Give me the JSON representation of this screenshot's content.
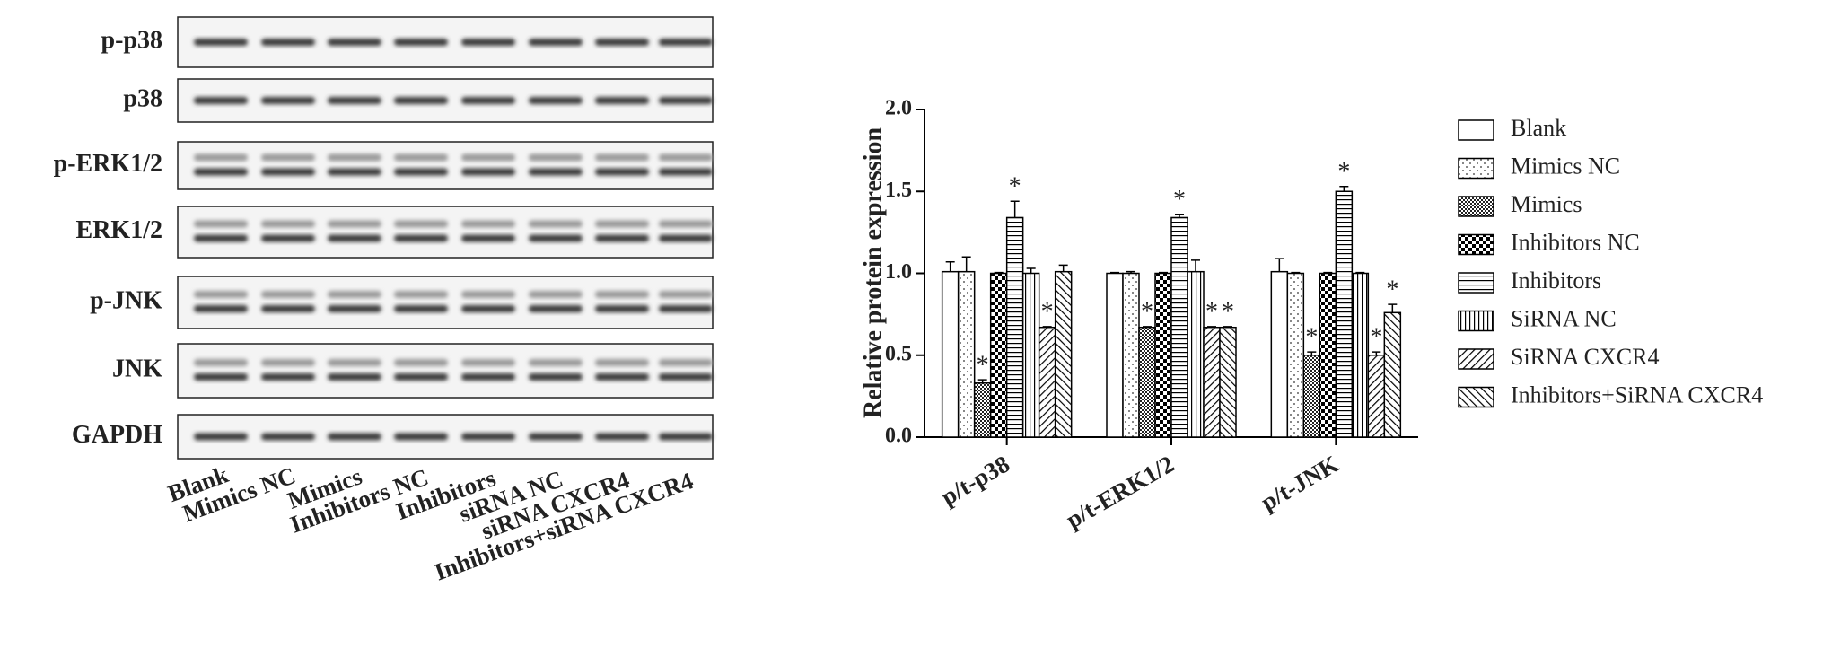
{
  "blot": {
    "rows": [
      "p-p38",
      "p38",
      "p-ERK1/2",
      "ERK1/2",
      "p-JNK",
      "JNK",
      "GAPDH"
    ],
    "lanes": [
      "Blank",
      "Mimics NC",
      "Mimics",
      "Inhibitors NC",
      "Inhibitors",
      "siRNA NC",
      "siRNA CXCR4",
      "Inhibitors+siRNA CXCR4"
    ]
  },
  "chart_data": {
    "type": "bar",
    "y_label": "Relative  protein expression",
    "categories": [
      "p/t-p38",
      "p/t-ERK1/2",
      "p/t-JNK"
    ],
    "series": [
      {
        "name": "Blank",
        "color": "#000000",
        "pattern": "none",
        "values": [
          1.01,
          1.0,
          1.01
        ],
        "errors": [
          0.06,
          0.005,
          0.08
        ]
      },
      {
        "name": "Mimics NC",
        "color": "#000000",
        "pattern": "dots",
        "values": [
          1.01,
          1.0,
          1.0
        ],
        "errors": [
          0.09,
          0.01,
          0.005
        ]
      },
      {
        "name": "Mimics",
        "color": "#000000",
        "pattern": "dense",
        "values": [
          0.33,
          0.67,
          0.5
        ],
        "errors": [
          0.02,
          0.005,
          0.02
        ]
      },
      {
        "name": "Inhibitors NC",
        "color": "#000000",
        "pattern": "checker",
        "values": [
          1.0,
          1.0,
          1.0
        ],
        "errors": [
          0.005,
          0.005,
          0.005
        ]
      },
      {
        "name": "Inhibitors",
        "color": "#000000",
        "pattern": "hlines",
        "values": [
          1.34,
          1.34,
          1.5
        ],
        "errors": [
          0.1,
          0.02,
          0.03
        ]
      },
      {
        "name": "SiRNA NC",
        "color": "#000000",
        "pattern": "vlines",
        "values": [
          1.0,
          1.01,
          1.0
        ],
        "errors": [
          0.03,
          0.07,
          0.005
        ]
      },
      {
        "name": "SiRNA CXCR4",
        "color": "#000000",
        "pattern": "diag",
        "values": [
          0.67,
          0.67,
          0.5
        ],
        "errors": [
          0.005,
          0.005,
          0.02
        ]
      },
      {
        "name": "Inhibitors+SiRNA CXCR4",
        "color": "#000000",
        "pattern": "backdiag",
        "values": [
          1.01,
          0.67,
          0.76
        ],
        "errors": [
          0.04,
          0.005,
          0.05
        ]
      }
    ],
    "annotations": [
      {
        "label": "*",
        "series": 2,
        "category": 0
      },
      {
        "label": "*",
        "series": 4,
        "category": 0
      },
      {
        "label": "*",
        "series": 6,
        "category": 0
      },
      {
        "label": "*",
        "series": 2,
        "category": 1
      },
      {
        "label": "*",
        "series": 4,
        "category": 1
      },
      {
        "label": "*",
        "series": 6,
        "category": 1
      },
      {
        "label": "*",
        "series": 7,
        "category": 1
      },
      {
        "label": "*",
        "series": 2,
        "category": 2
      },
      {
        "label": "*",
        "series": 4,
        "category": 2
      },
      {
        "label": "*",
        "series": 6,
        "category": 2
      },
      {
        "label": "*",
        "series": 7,
        "category": 2
      }
    ],
    "ylim": [
      0,
      2.0
    ],
    "yticks": [
      {
        "value": 0,
        "label": "0.0"
      },
      {
        "value": 0.5,
        "label": "0.5"
      },
      {
        "value": 1.0,
        "label": "1.0"
      },
      {
        "value": 1.5,
        "label": "1.5"
      },
      {
        "value": 2.0,
        "label": "2.0"
      }
    ],
    "legend": "right"
  }
}
